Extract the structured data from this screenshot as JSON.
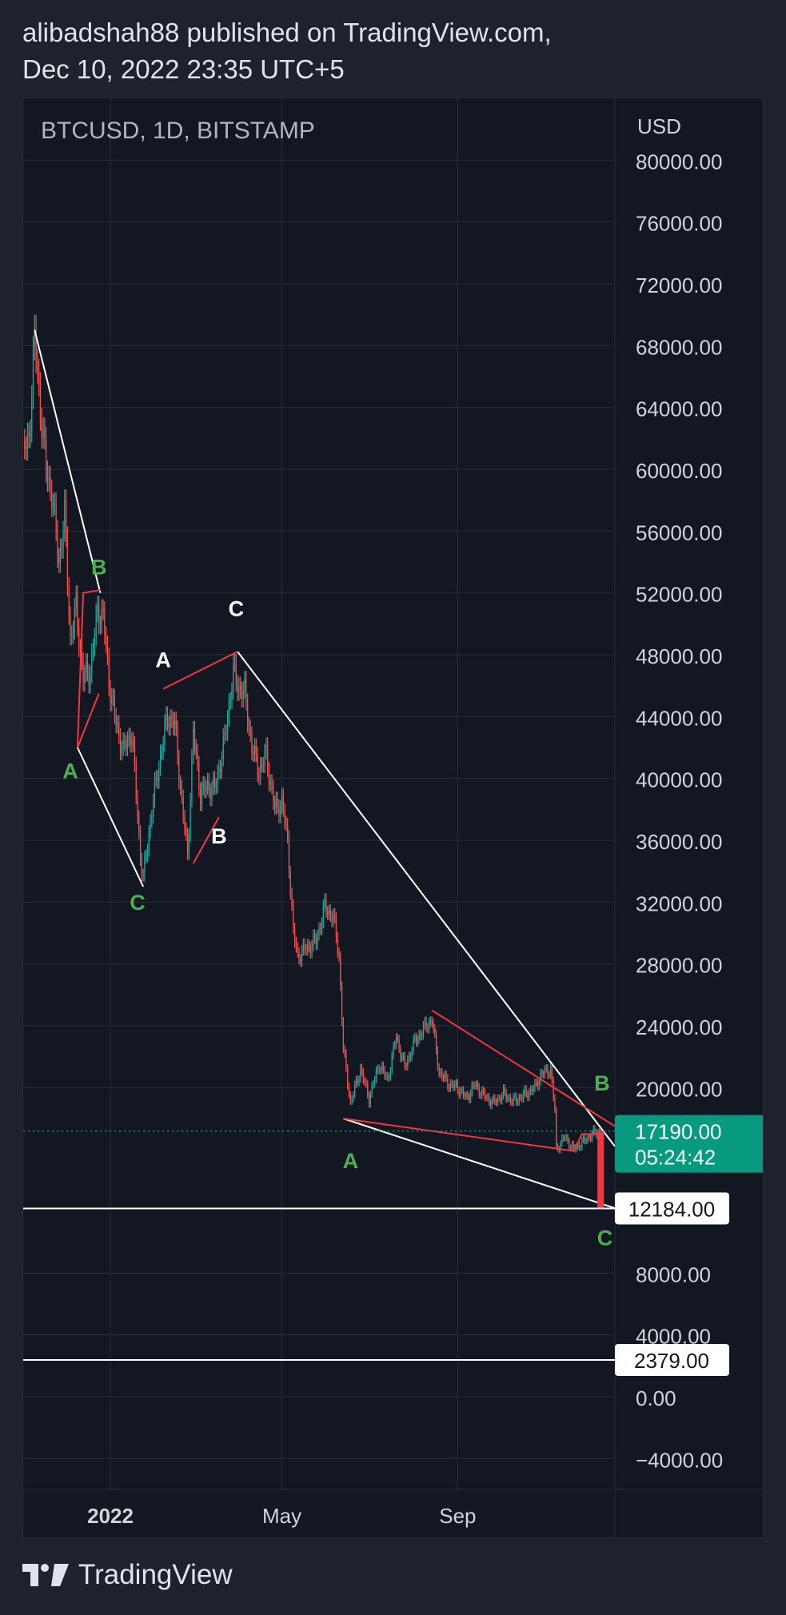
{
  "header": {
    "line1": "alibadshah88 published on TradingView.com,",
    "line2": "Dec 10, 2022 23:35 UTC+5"
  },
  "footer": {
    "brand": "TradingView",
    "logo_icon": "tradingview-logo-icon"
  },
  "chart_data": {
    "type": "candlestick",
    "symbol_label": "BTCUSD, 1D, BITSTAMP",
    "currency_label": "USD",
    "y_ticks": [
      "80000.00",
      "76000.00",
      "72000.00",
      "68000.00",
      "64000.00",
      "60000.00",
      "56000.00",
      "52000.00",
      "48000.00",
      "44000.00",
      "40000.00",
      "36000.00",
      "32000.00",
      "28000.00",
      "24000.00",
      "20000.00",
      "8000.00",
      "4000.00",
      "0.00",
      "−4000.00"
    ],
    "y_tick_values": [
      80000,
      76000,
      72000,
      68000,
      64000,
      60000,
      56000,
      52000,
      48000,
      44000,
      40000,
      36000,
      32000,
      28000,
      24000,
      20000,
      8000,
      4000,
      0,
      -4000
    ],
    "x_ticks": [
      "2022",
      "May",
      "Sep"
    ],
    "x_tick_dates": [
      "2022-01-01",
      "2022-05-01",
      "2022-09-01"
    ],
    "x_range": [
      "2021-11-01",
      "2022-12-20"
    ],
    "y_range": [
      -6000,
      84000
    ],
    "price_trail": [
      [
        "2021-11-01",
        61000
      ],
      [
        "2021-11-05",
        62000
      ],
      [
        "2021-11-09",
        68500
      ],
      [
        "2021-11-13",
        64000
      ],
      [
        "2021-11-17",
        60000
      ],
      [
        "2021-11-21",
        58500
      ],
      [
        "2021-11-26",
        54000
      ],
      [
        "2021-11-30",
        57000
      ],
      [
        "2021-12-04",
        49000
      ],
      [
        "2021-12-08",
        51000
      ],
      [
        "2021-12-13",
        46500
      ],
      [
        "2021-12-18",
        47000
      ],
      [
        "2021-12-23",
        50800
      ],
      [
        "2021-12-27",
        50500
      ],
      [
        "2021-12-31",
        46300
      ],
      [
        "2022-01-05",
        43500
      ],
      [
        "2022-01-10",
        41800
      ],
      [
        "2022-01-16",
        43000
      ],
      [
        "2022-01-22",
        35000
      ],
      [
        "2022-01-24",
        33500
      ],
      [
        "2022-01-30",
        38000
      ],
      [
        "2022-02-05",
        41500
      ],
      [
        "2022-02-10",
        44000
      ],
      [
        "2022-02-15",
        43500
      ],
      [
        "2022-02-20",
        38500
      ],
      [
        "2022-02-24",
        35000
      ],
      [
        "2022-02-28",
        43000
      ],
      [
        "2022-03-05",
        39000
      ],
      [
        "2022-03-10",
        39500
      ],
      [
        "2022-03-15",
        39300
      ],
      [
        "2022-03-22",
        42500
      ],
      [
        "2022-03-28",
        47000
      ],
      [
        "2022-03-31",
        46000
      ],
      [
        "2022-04-05",
        45500
      ],
      [
        "2022-04-10",
        42000
      ],
      [
        "2022-04-15",
        40500
      ],
      [
        "2022-04-20",
        41500
      ],
      [
        "2022-04-26",
        38000
      ],
      [
        "2022-05-01",
        38500
      ],
      [
        "2022-05-05",
        36000
      ],
      [
        "2022-05-09",
        30000
      ],
      [
        "2022-05-12",
        28500
      ],
      [
        "2022-05-18",
        29000
      ],
      [
        "2022-05-25",
        29500
      ],
      [
        "2022-05-31",
        31700
      ],
      [
        "2022-06-06",
        31000
      ],
      [
        "2022-06-10",
        28500
      ],
      [
        "2022-06-13",
        22500
      ],
      [
        "2022-06-18",
        19000
      ],
      [
        "2022-06-25",
        21200
      ],
      [
        "2022-07-01",
        19300
      ],
      [
        "2022-07-08",
        21500
      ],
      [
        "2022-07-14",
        20500
      ],
      [
        "2022-07-20",
        23300
      ],
      [
        "2022-07-26",
        21300
      ],
      [
        "2022-08-02",
        23000
      ],
      [
        "2022-08-10",
        24000
      ],
      [
        "2022-08-14",
        24400
      ],
      [
        "2022-08-19",
        21000
      ],
      [
        "2022-08-26",
        20200
      ],
      [
        "2022-09-01",
        20000
      ],
      [
        "2022-09-07",
        19300
      ],
      [
        "2022-09-13",
        20200
      ],
      [
        "2022-09-19",
        19500
      ],
      [
        "2022-09-26",
        19000
      ],
      [
        "2022-10-03",
        19600
      ],
      [
        "2022-10-10",
        19100
      ],
      [
        "2022-10-17",
        19500
      ],
      [
        "2022-10-25",
        20000
      ],
      [
        "2022-10-29",
        20800
      ],
      [
        "2022-11-05",
        21200
      ],
      [
        "2022-11-08",
        18500
      ],
      [
        "2022-11-09",
        16000
      ],
      [
        "2022-11-15",
        16800
      ],
      [
        "2022-11-21",
        16000
      ],
      [
        "2022-11-28",
        16500
      ],
      [
        "2022-12-04",
        17000
      ],
      [
        "2022-12-10",
        17190
      ]
    ],
    "wave_lines_white": [
      [
        [
          "2021-11-09",
          69000
        ],
        [
          "2021-12-25",
          52000
        ]
      ],
      [
        [
          "2021-12-09",
          42000
        ],
        [
          "2022-01-24",
          33000
        ]
      ],
      [
        [
          "2022-03-31",
          48200
        ],
        [
          "2022-12-20",
          16200
        ]
      ],
      [
        [
          "2022-06-13",
          18000
        ],
        [
          "2022-12-20",
          12200
        ]
      ]
    ],
    "wave_lines_red": [
      [
        [
          "2021-12-09",
          42000
        ],
        [
          "2021-12-13",
          52000
        ],
        [
          "2021-12-25",
          52200
        ]
      ],
      [
        [
          "2021-12-09",
          42000
        ],
        [
          "2021-12-24",
          45500
        ]
      ],
      [
        [
          "2022-02-07",
          45800
        ],
        [
          "2022-03-31",
          48200
        ]
      ],
      [
        [
          "2022-02-28",
          34500
        ],
        [
          "2022-03-18",
          37500
        ]
      ],
      [
        [
          "2022-08-14",
          25000
        ],
        [
          "2022-12-20",
          17500
        ]
      ],
      [
        [
          "2022-06-13",
          18000
        ],
        [
          "2022-11-21",
          15900
        ],
        [
          "2022-11-27",
          17000
        ],
        [
          "2022-12-10",
          17000
        ]
      ]
    ],
    "projection_bar": {
      "date": "2022-12-10",
      "from": 17190,
      "to": 12184
    },
    "wave_labels": [
      {
        "text": "B",
        "date": "2021-12-24",
        "value": 53200,
        "color": "green"
      },
      {
        "text": "A",
        "date": "2021-12-04",
        "value": 40000,
        "color": "green"
      },
      {
        "text": "C",
        "date": "2022-01-20",
        "value": 31500,
        "color": "green"
      },
      {
        "text": "A",
        "date": "2022-02-07",
        "value": 47200,
        "color": "white"
      },
      {
        "text": "C",
        "date": "2022-03-30",
        "value": 50500,
        "color": "white"
      },
      {
        "text": "B",
        "date": "2022-03-18",
        "value": 35800,
        "color": "white"
      },
      {
        "text": "A",
        "date": "2022-06-18",
        "value": 14800,
        "color": "green"
      },
      {
        "text": "B",
        "date": "2022-12-11",
        "value": 19800,
        "color": "green"
      },
      {
        "text": "C",
        "date": "2022-12-13",
        "value": 9800,
        "color": "green"
      }
    ],
    "horizontal_levels": [
      {
        "value": 12184,
        "label": "12184.00"
      },
      {
        "value": 2379,
        "label": "2379.00"
      }
    ],
    "current_price": {
      "value": 17190,
      "label": "17190.00",
      "countdown": "05:24:42"
    },
    "colors": {
      "background": "#131722",
      "grid": "#2a2e39",
      "up": "#26a69a",
      "down": "#ef5350",
      "wave_red": "#f23645",
      "wave_white": "#ffffff",
      "label_green": "#4caf50",
      "price_badge": "#089981",
      "text": "#d1d4dc"
    },
    "grid": true
  }
}
